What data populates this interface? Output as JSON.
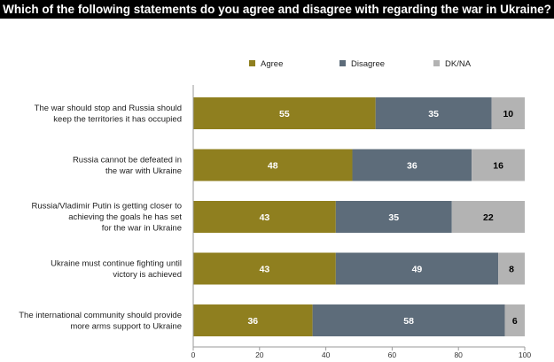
{
  "title": "Which of the following statements do you agree and disagree with regarding the war in Ukraine?",
  "chart_data": {
    "type": "bar",
    "orientation": "horizontal",
    "stacked": true,
    "title": "Which of the following statements do you agree and disagree with regarding the war in Ukraine?",
    "categories": [
      [
        "The war should stop and Russia should",
        "keep the territories it has occupied"
      ],
      [
        "Russia cannot be defeated in",
        "the war with Ukraine"
      ],
      [
        "Russia/Vladimir Putin is getting closer to",
        "achieving the goals he has set",
        "for the war in Ukraine"
      ],
      [
        "Ukraine must continue fighting until",
        "victory is achieved"
      ],
      [
        "The international community should provide",
        "more arms support to Ukraine"
      ]
    ],
    "series": [
      {
        "name": "Agree",
        "color": "#8f7f1f",
        "label_color": "#ffffff",
        "values": [
          55,
          48,
          43,
          43,
          36
        ]
      },
      {
        "name": "Disagree",
        "color": "#5d6c7a",
        "label_color": "#ffffff",
        "values": [
          35,
          36,
          35,
          49,
          58
        ]
      },
      {
        "name": "DK/NA",
        "color": "#b3b3b3",
        "label_color": "#000000",
        "values": [
          10,
          16,
          22,
          8,
          6
        ]
      }
    ],
    "xlim": [
      0,
      100
    ],
    "xticks": [
      0,
      20,
      40,
      60,
      80,
      100
    ],
    "legend_position": "top",
    "grid": false
  }
}
